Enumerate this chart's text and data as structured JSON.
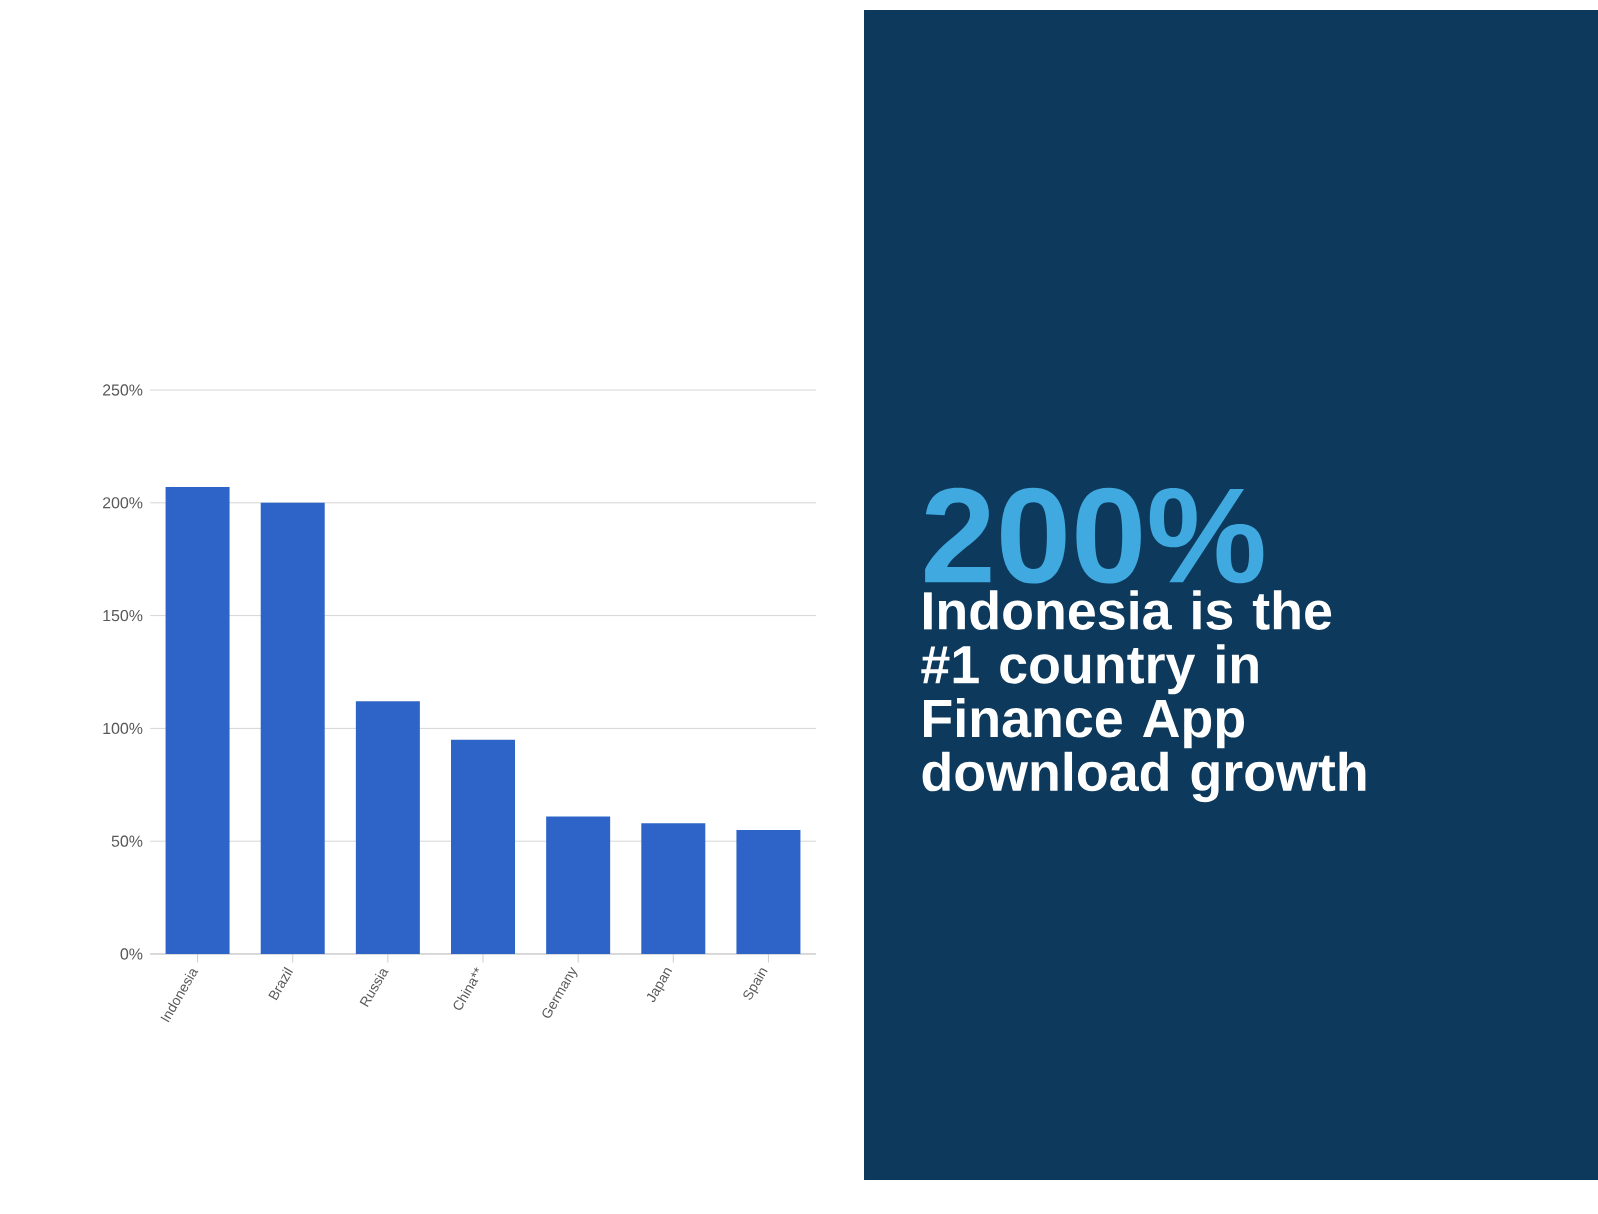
{
  "chart_data": {
    "type": "bar",
    "categories": [
      "Indonesia",
      "Brazil",
      "Russia",
      "China**",
      "Germany",
      "Japan",
      "Spain"
    ],
    "values": [
      207,
      200,
      112,
      95,
      61,
      58,
      55
    ],
    "color": "#2e64c8",
    "ylim": [
      0,
      250
    ],
    "yticks": [
      {
        "value": 0,
        "label": "0%"
      },
      {
        "value": 50,
        "label": "50%"
      },
      {
        "value": 100,
        "label": "100%"
      },
      {
        "value": 150,
        "label": "150%"
      },
      {
        "value": 200,
        "label": "200%"
      },
      {
        "value": 250,
        "label": "250%"
      }
    ],
    "grid": "y",
    "annotations": [
      "200%",
      "Indonesia is the #1 country in Finance App download growth"
    ]
  }
}
